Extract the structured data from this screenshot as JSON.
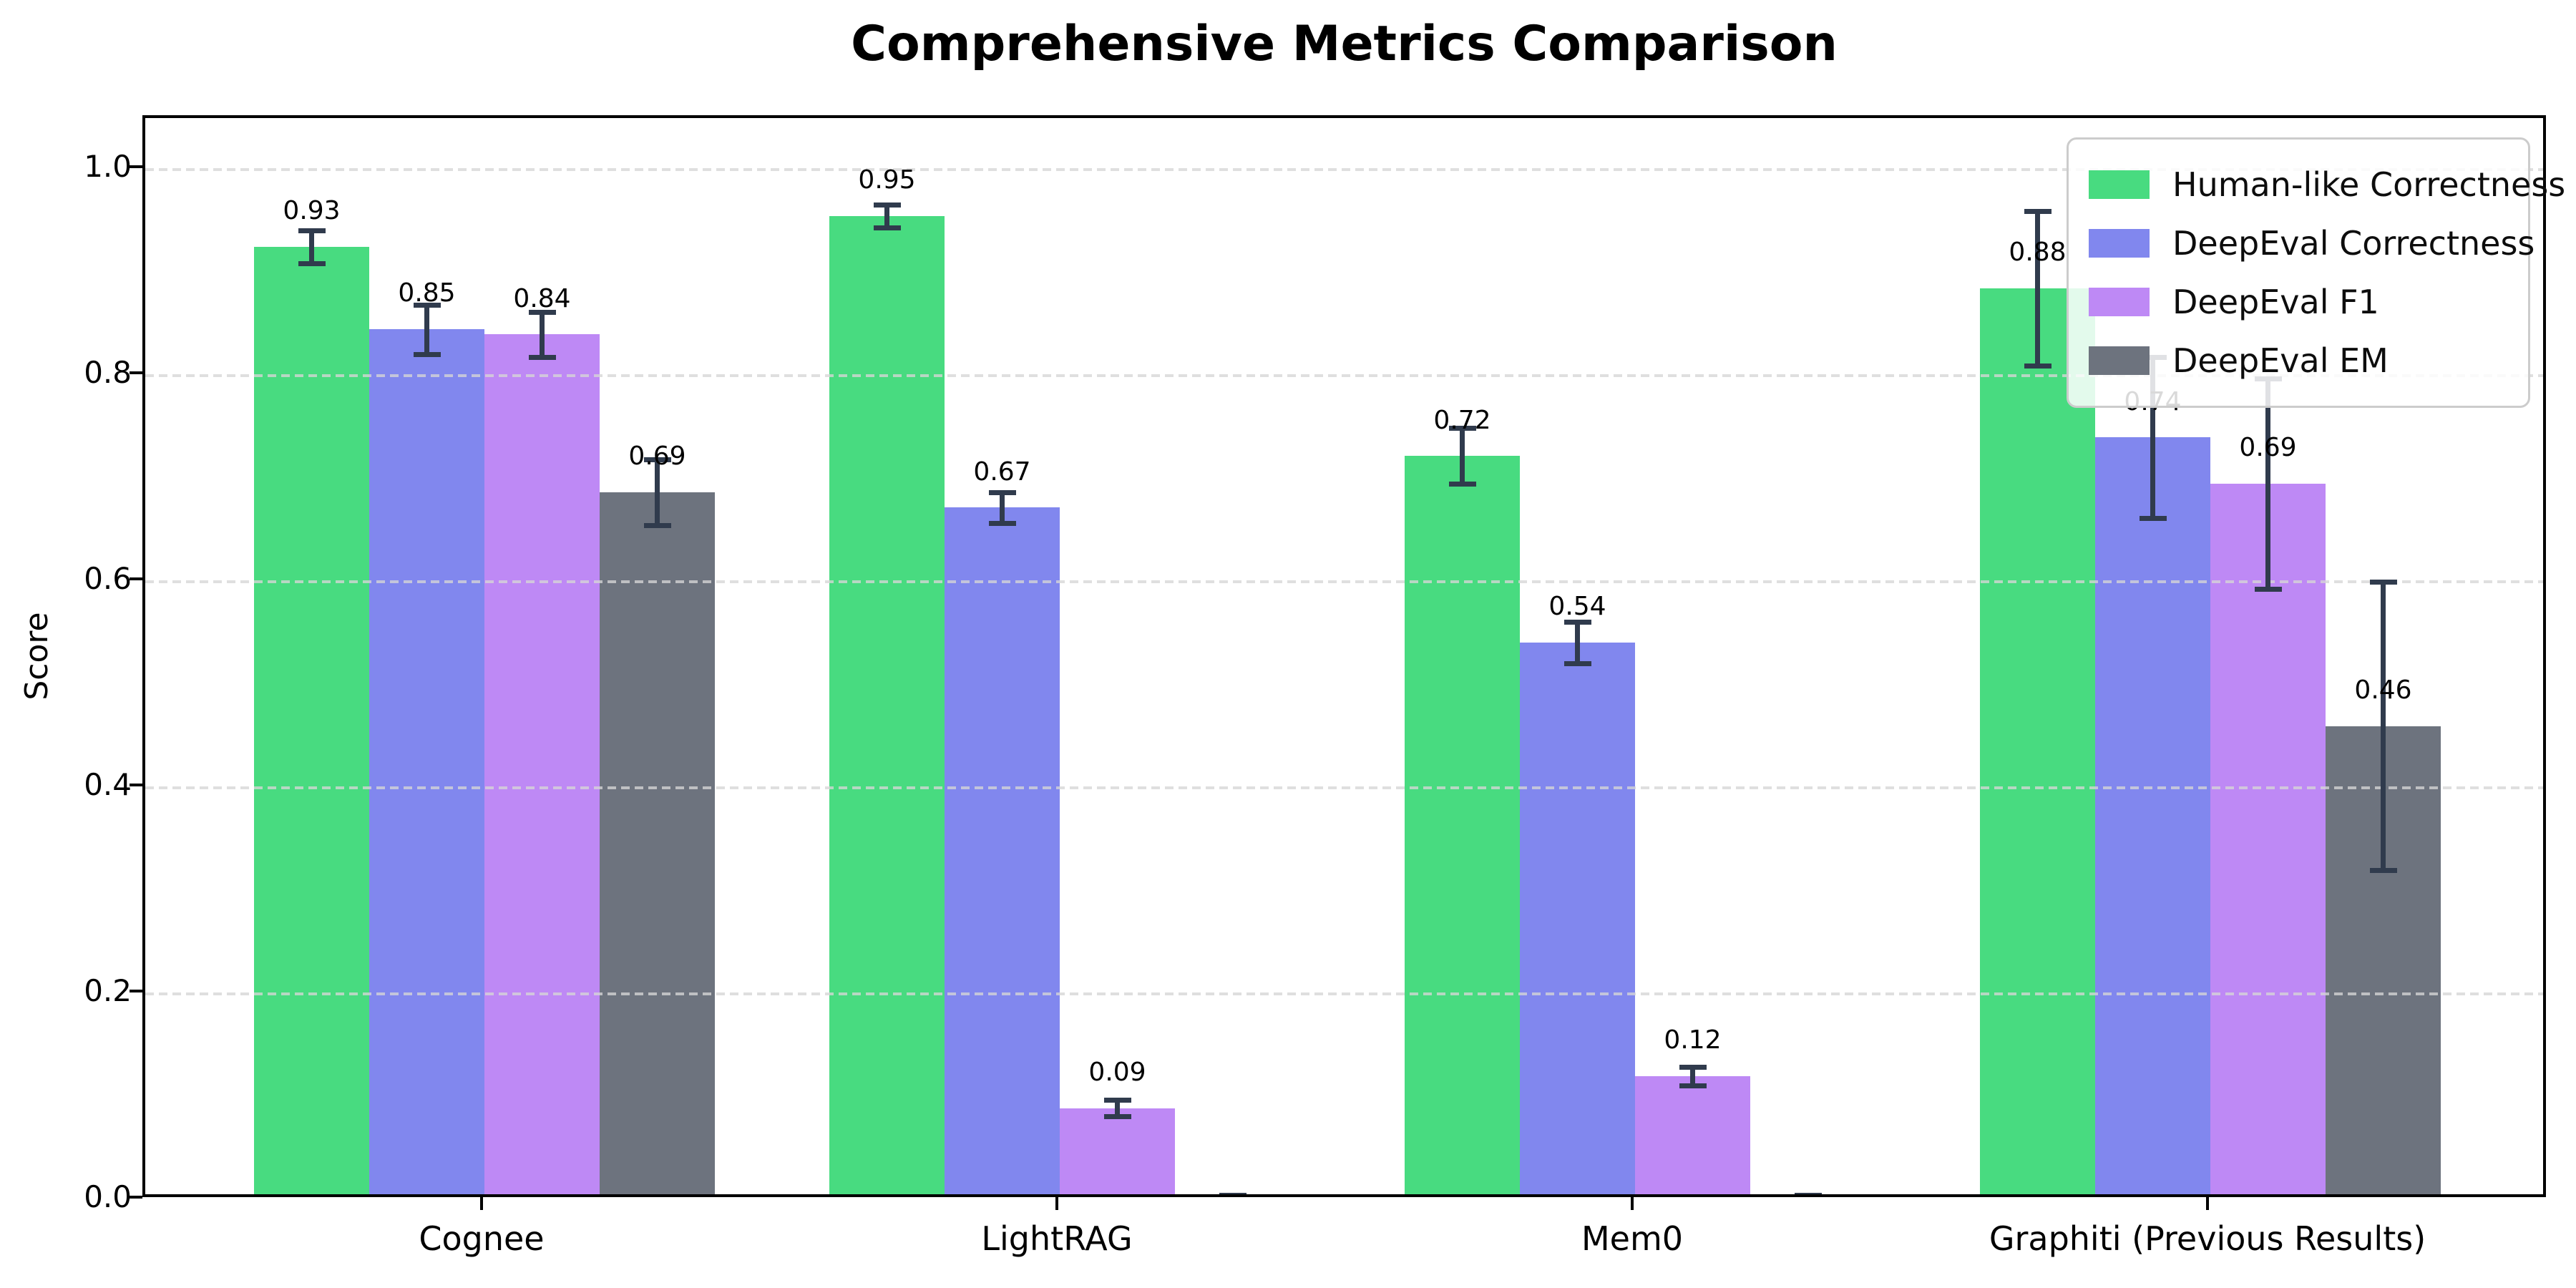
{
  "title": "Comprehensive Metrics Comparison",
  "chart_data": {
    "type": "bar",
    "title": "Comprehensive Metrics Comparison",
    "xlabel": "",
    "ylabel": "Score",
    "ylim": [
      0,
      1.05
    ],
    "grid": "horizontal-dashed",
    "legend_position": "upper right",
    "categories": [
      "Cognee",
      "LightRAG",
      "Mem0",
      "Graphiti (Previous Results)"
    ],
    "yticks": [
      {
        "label": "0.0",
        "value": 0.0
      },
      {
        "label": "0.2",
        "value": 0.2
      },
      {
        "label": "0.4",
        "value": 0.4
      },
      {
        "label": "0.6",
        "value": 0.6
      },
      {
        "label": "0.8",
        "value": 0.8
      },
      {
        "label": "1.0",
        "value": 1.0
      }
    ],
    "series": [
      {
        "name": "Human-like Correctness",
        "color": "#48db80",
        "values": [
          0.925,
          0.955,
          0.722,
          0.885
        ],
        "errors": [
          0.016,
          0.011,
          0.027,
          0.075
        ],
        "labels": [
          "0.93",
          "0.95",
          "0.72",
          "0.88"
        ]
      },
      {
        "name": "DeepEval Correctness",
        "color": "#8187ee",
        "values": [
          0.845,
          0.672,
          0.541,
          0.74
        ],
        "errors": [
          0.024,
          0.015,
          0.02,
          0.078
        ],
        "labels": [
          "0.85",
          "0.67",
          "0.54",
          "0.74"
        ]
      },
      {
        "name": "DeepEval F1",
        "color": "#be89f5",
        "values": [
          0.84,
          0.089,
          0.12,
          0.695
        ],
        "errors": [
          0.022,
          0.008,
          0.009,
          0.102
        ],
        "labels": [
          "0.84",
          "0.09",
          "0.12",
          "0.69"
        ]
      },
      {
        "name": "DeepEval EM",
        "color": "#6d737e",
        "values": [
          0.687,
          0.001,
          0.001,
          0.46
        ],
        "errors": [
          0.032,
          0.004,
          0.004,
          0.14
        ],
        "labels": [
          "0.69",
          null,
          null,
          "0.46"
        ]
      }
    ],
    "colors": {
      "error_bar": "#303b4d",
      "grid_line": "#d6d6d6",
      "axis_spine": "#000000",
      "background": "#ffffff"
    }
  }
}
